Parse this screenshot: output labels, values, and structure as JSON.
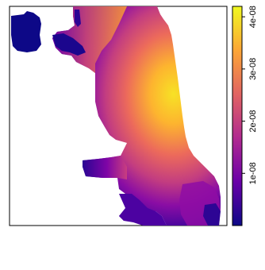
{
  "legend": {
    "colorscale": "plasma",
    "colors": [
      "#0d0887",
      "#6a00a8",
      "#b12a90",
      "#e16462",
      "#fca636",
      "#f0f921"
    ],
    "range": [
      0,
      4.2e-08
    ],
    "ticks": [
      {
        "value": 1e-08,
        "label": "1e-08"
      },
      {
        "value": 2e-08,
        "label": "2e-08"
      },
      {
        "value": 3e-08,
        "label": "3e-08"
      },
      {
        "value": 4e-08,
        "label": "4e-08"
      }
    ]
  },
  "map": {
    "region_fill_colors": {
      "low": "#0d0887",
      "mid_low": "#7e03a8",
      "mid": "#cc4778",
      "mid_high": "#f89540",
      "high": "#f0f921"
    }
  }
}
